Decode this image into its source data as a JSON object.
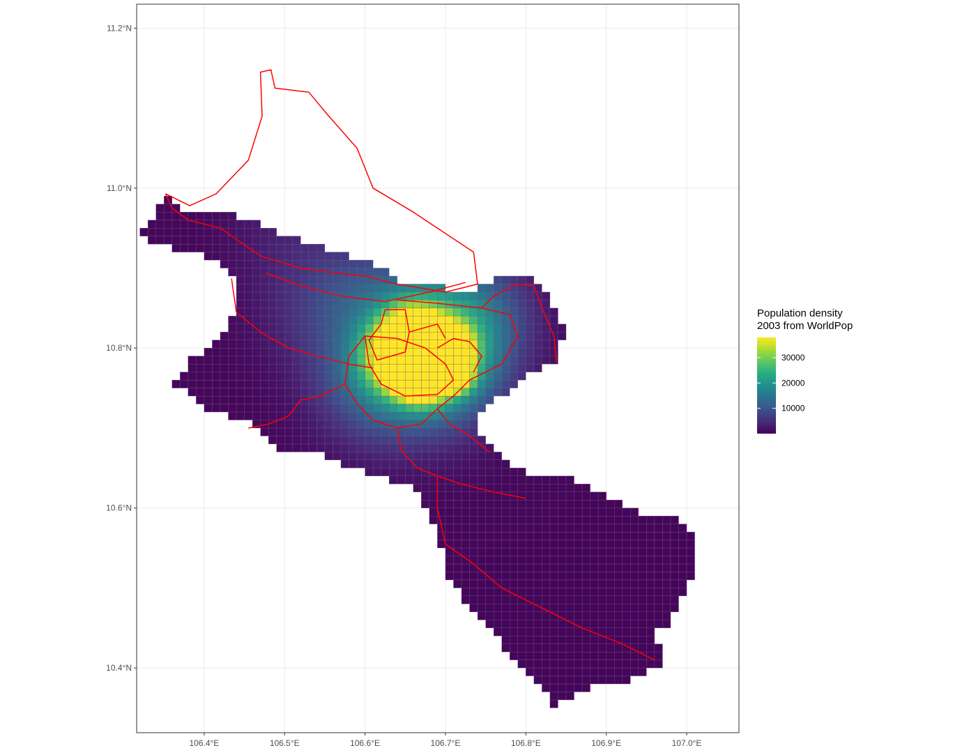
{
  "chart_data": {
    "type": "heatmap",
    "title": "",
    "xlabel": "",
    "ylabel": "",
    "x_ticks": [
      {
        "value": 106.4,
        "label": "106.4°E"
      },
      {
        "value": 106.5,
        "label": "106.5°E"
      },
      {
        "value": 106.6,
        "label": "106.6°E"
      },
      {
        "value": 106.7,
        "label": "106.7°E"
      },
      {
        "value": 106.8,
        "label": "106.8°E"
      },
      {
        "value": 106.9,
        "label": "106.9°E"
      },
      {
        "value": 107.0,
        "label": "107.0°E"
      }
    ],
    "y_ticks": [
      {
        "value": 10.4,
        "label": "10.4°N"
      },
      {
        "value": 10.6,
        "label": "10.6°N"
      },
      {
        "value": 10.8,
        "label": "10.8°N"
      },
      {
        "value": 11.0,
        "label": "11.0°N"
      },
      {
        "value": 11.2,
        "label": "11.2°N"
      }
    ],
    "xlim": [
      106.316,
      107.065
    ],
    "ylim": [
      10.319,
      11.23
    ],
    "grid": true,
    "legend": {
      "title_line1": "Population density",
      "title_line2": "2003 from WorldPop",
      "placement": "right",
      "min": 0,
      "max": 38000,
      "ticks": [
        {
          "value": 10000,
          "label": "10000"
        },
        {
          "value": 20000,
          "label": "20000"
        },
        {
          "value": 30000,
          "label": "30000"
        }
      ]
    },
    "colors": {
      "grid": "#ebebeb",
      "panel_border": "#333333",
      "cell_border": "#7e4d8e",
      "boundary": "#ff0000",
      "viridis": [
        "#440154",
        "#472c7a",
        "#3b528b",
        "#2c728e",
        "#21908d",
        "#27ad81",
        "#5cc863",
        "#aadc32",
        "#fde725"
      ]
    },
    "grid_cell_deg": 0.01,
    "region_outline": [
      [
        106.352,
        10.993
      ],
      [
        106.362,
        10.978
      ],
      [
        106.382,
        10.972
      ],
      [
        106.428,
        10.972
      ],
      [
        106.455,
        10.96
      ],
      [
        106.478,
        10.95
      ],
      [
        106.52,
        10.935
      ],
      [
        106.555,
        10.925
      ],
      [
        106.585,
        10.915
      ],
      [
        106.61,
        10.905
      ],
      [
        106.63,
        10.895
      ],
      [
        106.645,
        10.878
      ],
      [
        106.68,
        10.88
      ],
      [
        106.73,
        10.87
      ],
      [
        106.76,
        10.885
      ],
      [
        106.79,
        10.895
      ],
      [
        106.82,
        10.878
      ],
      [
        106.835,
        10.855
      ],
      [
        106.848,
        10.82
      ],
      [
        106.838,
        10.78
      ],
      [
        106.812,
        10.772
      ],
      [
        106.795,
        10.762
      ],
      [
        106.77,
        10.74
      ],
      [
        106.745,
        10.72
      ],
      [
        106.735,
        10.7
      ],
      [
        106.755,
        10.68
      ],
      [
        106.775,
        10.658
      ],
      [
        106.81,
        10.64
      ],
      [
        106.85,
        10.645
      ],
      [
        106.88,
        10.625
      ],
      [
        106.925,
        10.6
      ],
      [
        106.965,
        10.585
      ],
      [
        106.99,
        10.59
      ],
      [
        107.005,
        10.575
      ],
      [
        107.01,
        10.545
      ],
      [
        107.005,
        10.505
      ],
      [
        106.99,
        10.48
      ],
      [
        106.98,
        10.455
      ],
      [
        106.955,
        10.442
      ],
      [
        106.978,
        10.42
      ],
      [
        106.965,
        10.4
      ],
      [
        106.935,
        10.385
      ],
      [
        106.88,
        10.375
      ],
      [
        106.835,
        10.352
      ],
      [
        106.815,
        10.385
      ],
      [
        106.775,
        10.425
      ],
      [
        106.735,
        10.47
      ],
      [
        106.7,
        10.52
      ],
      [
        106.69,
        10.575
      ],
      [
        106.68,
        10.585
      ],
      [
        106.67,
        10.615
      ],
      [
        106.65,
        10.63
      ],
      [
        106.62,
        10.64
      ],
      [
        106.59,
        10.65
      ],
      [
        106.56,
        10.66
      ],
      [
        106.525,
        10.675
      ],
      [
        106.49,
        10.67
      ],
      [
        106.47,
        10.7
      ],
      [
        106.445,
        10.712
      ],
      [
        106.415,
        10.72
      ],
      [
        106.395,
        10.73
      ],
      [
        106.365,
        10.755
      ],
      [
        106.385,
        10.785
      ],
      [
        106.415,
        10.81
      ],
      [
        106.44,
        10.845
      ],
      [
        106.44,
        10.885
      ],
      [
        106.42,
        10.91
      ],
      [
        106.385,
        10.92
      ],
      [
        106.34,
        10.93
      ],
      [
        106.322,
        10.94
      ]
    ],
    "boundaries": [
      [
        [
          106.352,
          10.993
        ],
        [
          106.382,
          10.978
        ],
        [
          106.415,
          10.993
        ],
        [
          106.455,
          11.035
        ],
        [
          106.472,
          11.09
        ],
        [
          106.47,
          11.145
        ],
        [
          106.483,
          11.148
        ],
        [
          106.488,
          11.125
        ],
        [
          106.53,
          11.12
        ],
        [
          106.555,
          11.09
        ],
        [
          106.59,
          11.05
        ],
        [
          106.61,
          11.0
        ],
        [
          106.66,
          10.97
        ],
        [
          106.69,
          10.95
        ],
        [
          106.735,
          10.92
        ],
        [
          106.74,
          10.88
        ],
        [
          106.7,
          10.87
        ],
        [
          106.64,
          10.88
        ],
        [
          106.6,
          10.89
        ],
        [
          106.555,
          10.895
        ],
        [
          106.52,
          10.9
        ],
        [
          106.47,
          10.915
        ],
        [
          106.42,
          10.95
        ],
        [
          106.38,
          10.96
        ],
        [
          106.36,
          10.975
        ],
        [
          106.352,
          10.993
        ]
      ],
      [
        [
          106.476,
          10.894
        ],
        [
          106.52,
          10.878
        ],
        [
          106.57,
          10.865
        ],
        [
          106.625,
          10.858
        ],
        [
          106.68,
          10.87
        ],
        [
          106.725,
          10.882
        ]
      ],
      [
        [
          106.434,
          10.887
        ],
        [
          106.44,
          10.845
        ],
        [
          106.47,
          10.82
        ],
        [
          106.505,
          10.8
        ],
        [
          106.54,
          10.79
        ],
        [
          106.58,
          10.78
        ],
        [
          106.61,
          10.775
        ]
      ],
      [
        [
          106.625,
          10.848
        ],
        [
          106.65,
          10.848
        ],
        [
          106.655,
          10.82
        ],
        [
          106.65,
          10.795
        ],
        [
          106.615,
          10.785
        ],
        [
          106.605,
          10.81
        ],
        [
          106.62,
          10.83
        ],
        [
          106.625,
          10.848
        ]
      ],
      [
        [
          106.6,
          10.815
        ],
        [
          106.64,
          10.812
        ],
        [
          106.675,
          10.8
        ],
        [
          106.7,
          10.78
        ],
        [
          106.71,
          10.76
        ],
        [
          106.69,
          10.742
        ],
        [
          106.65,
          10.74
        ],
        [
          106.62,
          10.755
        ],
        [
          106.605,
          10.78
        ],
        [
          106.6,
          10.815
        ]
      ],
      [
        [
          106.64,
          10.86
        ],
        [
          106.69,
          10.856
        ],
        [
          106.745,
          10.85
        ],
        [
          106.78,
          10.842
        ],
        [
          106.79,
          10.815
        ],
        [
          106.77,
          10.78
        ],
        [
          106.73,
          10.76
        ],
        [
          106.71,
          10.74
        ],
        [
          106.69,
          10.724
        ],
        [
          106.67,
          10.705
        ],
        [
          106.64,
          10.7
        ],
        [
          106.61,
          10.71
        ],
        [
          106.59,
          10.73
        ],
        [
          106.575,
          10.755
        ],
        [
          106.58,
          10.79
        ],
        [
          106.6,
          10.815
        ]
      ],
      [
        [
          106.575,
          10.755
        ],
        [
          106.545,
          10.74
        ],
        [
          106.52,
          10.735
        ],
        [
          106.505,
          10.715
        ],
        [
          106.48,
          10.705
        ],
        [
          106.455,
          10.7
        ]
      ],
      [
        [
          106.69,
          10.724
        ],
        [
          106.705,
          10.705
        ],
        [
          106.73,
          10.69
        ],
        [
          106.755,
          10.67
        ]
      ],
      [
        [
          106.64,
          10.7
        ],
        [
          106.645,
          10.672
        ],
        [
          106.665,
          10.65
        ],
        [
          106.69,
          10.64
        ],
        [
          106.72,
          10.63
        ],
        [
          106.76,
          10.62
        ],
        [
          106.8,
          10.612
        ]
      ],
      [
        [
          106.69,
          10.64
        ],
        [
          106.69,
          10.6
        ],
        [
          106.7,
          10.555
        ],
        [
          106.735,
          10.53
        ],
        [
          106.77,
          10.5
        ],
        [
          106.82,
          10.475
        ],
        [
          106.87,
          10.45
        ],
        [
          106.92,
          10.43
        ],
        [
          106.96,
          10.41
        ]
      ],
      [
        [
          106.745,
          10.85
        ],
        [
          106.76,
          10.865
        ],
        [
          106.79,
          10.88
        ],
        [
          106.81,
          10.878
        ],
        [
          106.82,
          10.85
        ],
        [
          106.835,
          10.815
        ],
        [
          106.838,
          10.782
        ]
      ],
      [
        [
          106.69,
          10.8
        ],
        [
          106.71,
          10.812
        ],
        [
          106.73,
          10.808
        ],
        [
          106.745,
          10.79
        ],
        [
          106.735,
          10.77
        ]
      ],
      [
        [
          106.655,
          10.82
        ],
        [
          106.69,
          10.83
        ],
        [
          106.7,
          10.812
        ]
      ]
    ],
    "density_hotspots": [
      {
        "lon": 106.65,
        "lat": 10.765,
        "peak": 38000,
        "radius": 0.012
      },
      {
        "lon": 106.672,
        "lat": 10.765,
        "peak": 33000,
        "radius": 0.022
      },
      {
        "lon": 106.705,
        "lat": 10.8,
        "peak": 30000,
        "radius": 0.018
      },
      {
        "lon": 106.715,
        "lat": 10.765,
        "peak": 28000,
        "radius": 0.012
      },
      {
        "lon": 106.66,
        "lat": 10.82,
        "peak": 26000,
        "radius": 0.025
      },
      {
        "lon": 106.64,
        "lat": 10.79,
        "peak": 24000,
        "radius": 0.03
      },
      {
        "lon": 106.7,
        "lat": 10.78,
        "peak": 20000,
        "radius": 0.04
      },
      {
        "lon": 106.66,
        "lat": 10.8,
        "peak": 14000,
        "radius": 0.07
      },
      {
        "lon": 106.7,
        "lat": 10.84,
        "peak": 8000,
        "radius": 0.06
      },
      {
        "lon": 106.62,
        "lat": 10.76,
        "peak": 9000,
        "radius": 0.05
      },
      {
        "lon": 106.75,
        "lat": 10.84,
        "peak": 5000,
        "radius": 0.04
      },
      {
        "lon": 106.53,
        "lat": 10.85,
        "peak": 3000,
        "radius": 0.05
      },
      {
        "lon": 106.5,
        "lat": 10.95,
        "peak": 2500,
        "radius": 0.05
      },
      {
        "lon": 106.58,
        "lat": 10.88,
        "peak": 3500,
        "radius": 0.04
      }
    ]
  }
}
